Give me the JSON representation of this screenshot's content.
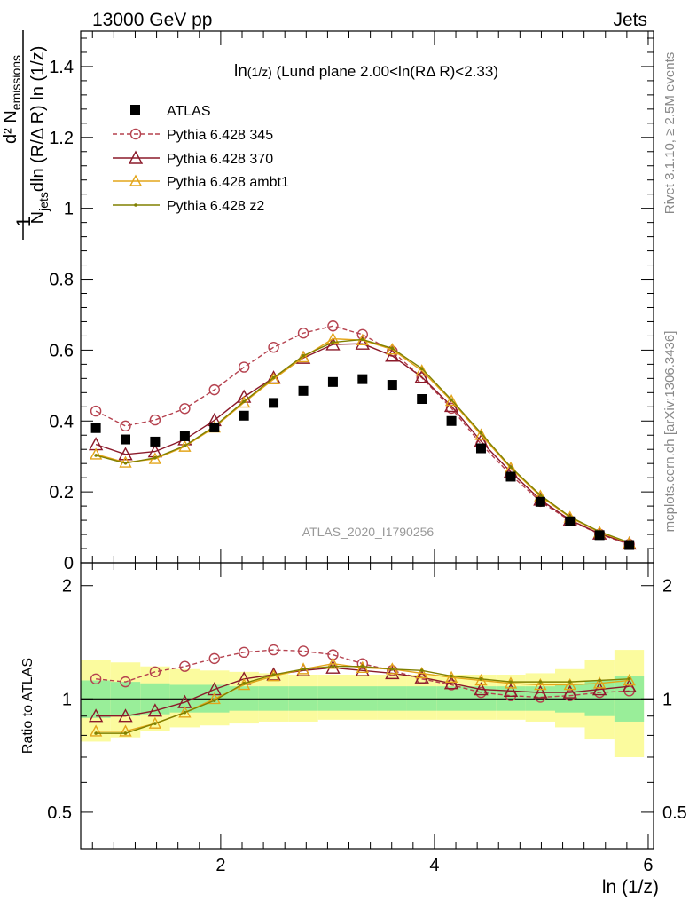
{
  "header": {
    "energy_label": "13000 GeV pp",
    "process_label": "Jets"
  },
  "side_labels": {
    "rivet": "Rivet 3.1.10, ≥ 2.5M events",
    "mcplots": "mcplots.cern.ch [arXiv:1306.3436]"
  },
  "analysis_id": "ATLAS_2020_I1790256",
  "colors": {
    "data": "#000000",
    "p345": "#b5424f",
    "p370": "#8b1a2a",
    "ambt1": "#e3a51a",
    "z2": "#808000",
    "band_inner": "#99ee99",
    "band_outer": "#fbfb9e"
  },
  "chart_data": [
    {
      "type": "scatter",
      "panel": "main",
      "title_main": "ln",
      "title_sub": "(1/z)",
      "title_rest": " (Lund plane 2.00<ln(RΔ R)<2.33)",
      "ylabel_frac_one": "1",
      "ylabel_top": "d² N",
      "ylabel_top_sub": "emissions",
      "ylabel_bottom_a": "N",
      "ylabel_bottom_sub": "jets",
      "ylabel_bottom_b": "dln (R/Δ R) ln (1/z)",
      "xlim": [
        0.69,
        6.05
      ],
      "ylim": [
        0,
        1.5
      ],
      "yticks": [
        "0",
        "0.2",
        "0.4",
        "0.6",
        "0.8",
        "1",
        "1.2",
        "1.4"
      ],
      "legend_position": "top-left",
      "x": [
        0.832,
        1.109,
        1.386,
        1.664,
        1.941,
        2.218,
        2.495,
        2.773,
        3.05,
        3.327,
        3.605,
        3.882,
        4.159,
        4.436,
        4.714,
        4.991,
        5.268,
        5.545,
        5.823
      ],
      "series": [
        {
          "name": "ATLAS",
          "key": "data",
          "marker": "square",
          "values": [
            0.38,
            0.348,
            0.342,
            0.357,
            0.382,
            0.415,
            0.451,
            0.485,
            0.51,
            0.518,
            0.502,
            0.462,
            0.4,
            0.323,
            0.243,
            0.172,
            0.117,
            0.078,
            0.05
          ]
        },
        {
          "name": "Pythia 6.428 345",
          "key": "p345",
          "marker": "circle",
          "values": [
            0.428,
            0.386,
            0.403,
            0.435,
            0.488,
            0.552,
            0.608,
            0.648,
            0.668,
            0.644,
            0.597,
            0.522,
            0.436,
            0.335,
            0.248,
            0.173,
            0.119,
            0.081,
            0.052
          ]
        },
        {
          "name": "Pythia 6.428 370",
          "key": "p370",
          "marker": "triangle",
          "values": [
            0.334,
            0.306,
            0.314,
            0.348,
            0.402,
            0.468,
            0.522,
            0.578,
            0.616,
            0.618,
            0.584,
            0.524,
            0.442,
            0.343,
            0.256,
            0.178,
            0.121,
            0.082,
            0.054
          ]
        },
        {
          "name": "Pythia 6.428 ambt1",
          "key": "ambt1",
          "marker": "triangle",
          "values": [
            0.306,
            0.283,
            0.293,
            0.328,
            0.382,
            0.452,
            0.518,
            0.58,
            0.632,
            0.628,
            0.602,
            0.542,
            0.457,
            0.361,
            0.267,
            0.188,
            0.128,
            0.086,
            0.056
          ]
        },
        {
          "name": "Pythia 6.428 z2",
          "key": "z2",
          "marker": "dot",
          "values": [
            0.303,
            0.281,
            0.296,
            0.33,
            0.385,
            0.455,
            0.522,
            0.584,
            0.622,
            0.63,
            0.605,
            0.548,
            0.46,
            0.366,
            0.27,
            0.191,
            0.13,
            0.088,
            0.057
          ]
        }
      ]
    },
    {
      "type": "line",
      "panel": "ratio",
      "ylabel": "Ratio to ATLAS",
      "xlabel": "ln (1/z)",
      "xlim": [
        0.69,
        6.05
      ],
      "ylim": [
        0.4,
        2.3
      ],
      "log_y": true,
      "yticks": [
        "0.5",
        "1",
        "2"
      ],
      "xticks": [
        "2",
        "4",
        "6"
      ],
      "bin_edges": [
        0.69,
        0.97,
        1.248,
        1.525,
        1.802,
        2.08,
        2.357,
        2.634,
        2.911,
        3.189,
        3.466,
        3.743,
        4.02,
        4.298,
        4.575,
        4.852,
        5.129,
        5.407,
        5.684,
        5.96
      ],
      "band_inner": {
        "low": [
          0.89,
          0.9,
          0.91,
          0.92,
          0.92,
          0.93,
          0.93,
          0.93,
          0.93,
          0.93,
          0.93,
          0.93,
          0.93,
          0.93,
          0.93,
          0.93,
          0.92,
          0.9,
          0.87
        ],
        "high": [
          1.12,
          1.11,
          1.1,
          1.09,
          1.09,
          1.08,
          1.08,
          1.08,
          1.08,
          1.08,
          1.08,
          1.08,
          1.08,
          1.08,
          1.08,
          1.08,
          1.09,
          1.12,
          1.15
        ]
      },
      "band_outer": {
        "low": [
          0.77,
          0.79,
          0.82,
          0.84,
          0.85,
          0.86,
          0.87,
          0.87,
          0.88,
          0.88,
          0.88,
          0.88,
          0.88,
          0.88,
          0.88,
          0.87,
          0.84,
          0.78,
          0.7
        ],
        "high": [
          1.27,
          1.25,
          1.22,
          1.2,
          1.19,
          1.18,
          1.17,
          1.16,
          1.16,
          1.16,
          1.16,
          1.16,
          1.16,
          1.16,
          1.16,
          1.17,
          1.2,
          1.27,
          1.35
        ]
      },
      "series": [
        {
          "name": "Pythia 6.428 345",
          "key": "p345",
          "values": [
            1.13,
            1.11,
            1.18,
            1.22,
            1.28,
            1.33,
            1.35,
            1.34,
            1.31,
            1.24,
            1.19,
            1.13,
            1.09,
            1.04,
            1.02,
            1.01,
            1.02,
            1.04,
            1.05
          ]
        },
        {
          "name": "Pythia 6.428 370",
          "key": "p370",
          "values": [
            0.9,
            0.9,
            0.93,
            0.98,
            1.06,
            1.13,
            1.16,
            1.19,
            1.21,
            1.19,
            1.17,
            1.14,
            1.1,
            1.06,
            1.05,
            1.04,
            1.04,
            1.06,
            1.08
          ]
        },
        {
          "name": "Pythia 6.428 ambt1",
          "key": "ambt1",
          "values": [
            0.82,
            0.82,
            0.86,
            0.92,
            1.0,
            1.09,
            1.15,
            1.2,
            1.24,
            1.21,
            1.2,
            1.17,
            1.14,
            1.12,
            1.1,
            1.09,
            1.09,
            1.1,
            1.12
          ]
        },
        {
          "name": "Pythia 6.428 z2",
          "key": "z2",
          "values": [
            0.81,
            0.81,
            0.86,
            0.92,
            0.99,
            1.1,
            1.16,
            1.2,
            1.22,
            1.22,
            1.2,
            1.19,
            1.15,
            1.13,
            1.11,
            1.11,
            1.11,
            1.12,
            1.13
          ]
        }
      ]
    }
  ]
}
